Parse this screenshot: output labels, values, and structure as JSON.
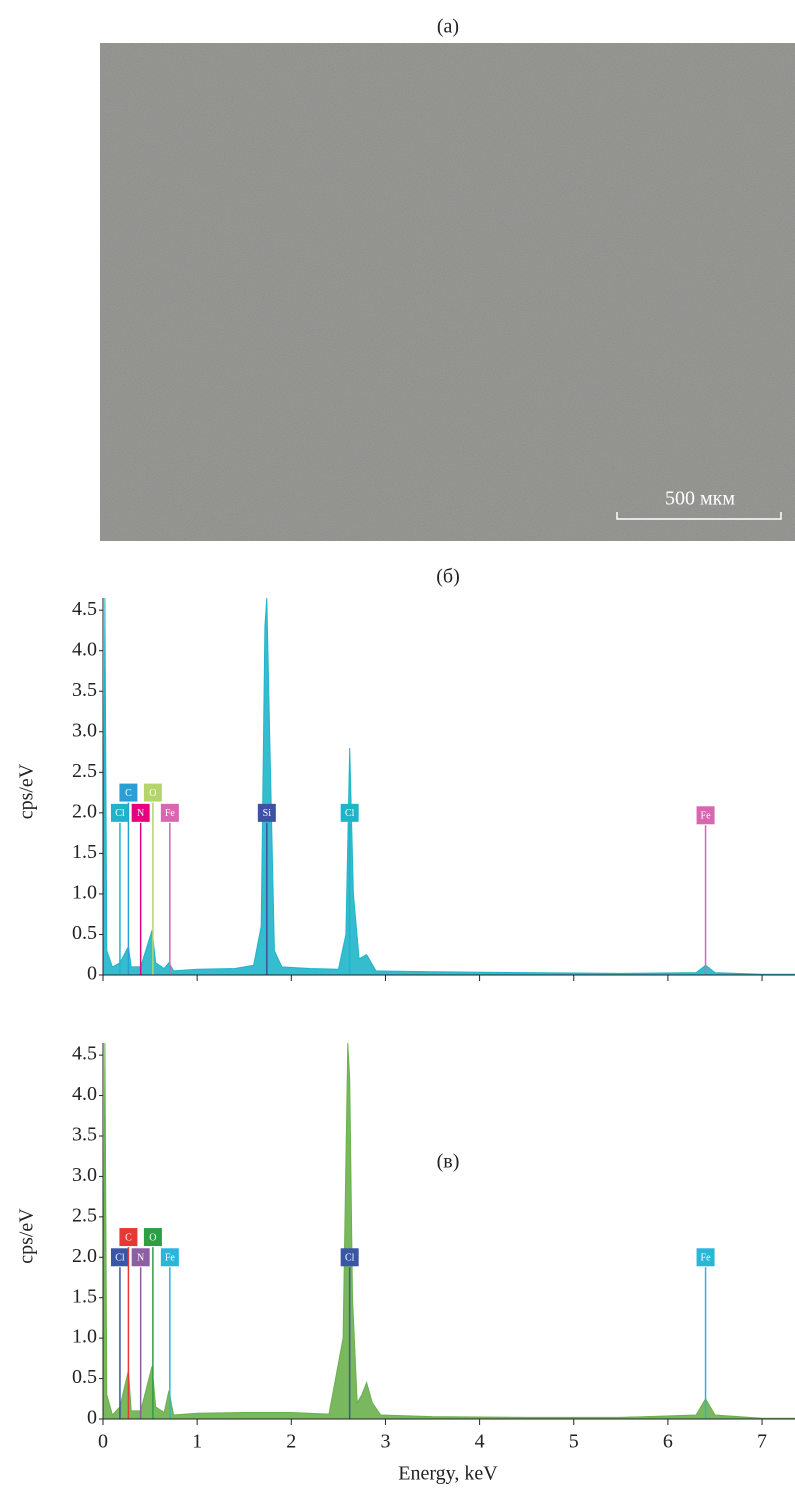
{
  "image": {
    "label": "(а)",
    "scale_bar": "500 мкм"
  },
  "chart_data": [
    {
      "type": "area",
      "title": "(б)",
      "ylabel": "cps/eV",
      "color": "#1fb5c9",
      "x": [
        0,
        0.02,
        0.04,
        0.1,
        0.18,
        0.27,
        0.3,
        0.4,
        0.52,
        0.56,
        0.65,
        0.7,
        0.75,
        1.0,
        1.4,
        1.6,
        1.68,
        1.72,
        1.74,
        1.77,
        1.82,
        1.9,
        2.2,
        2.5,
        2.58,
        2.62,
        2.66,
        2.72,
        2.8,
        2.9,
        3.5,
        4.5,
        5.5,
        6.3,
        6.4,
        6.5,
        7.0,
        7.35
      ],
      "values": [
        0,
        4.65,
        0.3,
        0.1,
        0.15,
        0.35,
        0.1,
        0.1,
        0.55,
        0.15,
        0.08,
        0.15,
        0.05,
        0.07,
        0.08,
        0.12,
        0.6,
        4.3,
        4.65,
        3.0,
        0.3,
        0.1,
        0.08,
        0.07,
        0.5,
        2.8,
        1.0,
        0.2,
        0.25,
        0.05,
        0.04,
        0.03,
        0.02,
        0.03,
        0.12,
        0.03,
        0.01,
        0.01
      ],
      "markers": [
        {
          "label": "Cl",
          "x": 0.18,
          "y": 2.0,
          "color": "#1fb5c9"
        },
        {
          "label": "C",
          "x": 0.27,
          "y": 2.25,
          "color": "#2a9fd6"
        },
        {
          "label": "N",
          "x": 0.4,
          "y": 2.0,
          "color": "#e6007e"
        },
        {
          "label": "O",
          "x": 0.53,
          "y": 2.25,
          "color": "#b5d56a"
        },
        {
          "label": "Fe",
          "x": 0.71,
          "y": 2.0,
          "color": "#d966b0"
        },
        {
          "label": "Si",
          "x": 1.74,
          "y": 2.0,
          "color": "#3f51a3"
        },
        {
          "label": "Cl",
          "x": 2.62,
          "y": 2.0,
          "color": "#1fb5c9"
        },
        {
          "label": "Fe",
          "x": 6.4,
          "y": 1.97,
          "color": "#d966b0"
        }
      ],
      "xlim": [
        0,
        7.35
      ],
      "xticks": [
        0,
        1,
        2,
        3,
        4,
        5,
        6,
        7
      ],
      "xtick_labels": false,
      "ylim": [
        0,
        4.65
      ],
      "yticks": [
        0,
        0.5,
        {
          "value": 1,
          "label": "1.0"
        },
        1.5,
        {
          "value": 2,
          "label": "2.0"
        },
        2.5,
        {
          "value": 3,
          "label": "3.0"
        },
        3.5,
        {
          "value": 4,
          "label": "4.0"
        },
        4.5
      ]
    },
    {
      "type": "area",
      "title": "(в)",
      "ylabel": "cps/eV",
      "xlabel": "Energy, keV",
      "color": "#6ab04c",
      "x": [
        0,
        0.02,
        0.04,
        0.1,
        0.18,
        0.27,
        0.3,
        0.4,
        0.52,
        0.56,
        0.65,
        0.7,
        0.75,
        1.0,
        1.5,
        2.0,
        2.4,
        2.55,
        2.6,
        2.62,
        2.65,
        2.7,
        2.75,
        2.8,
        2.86,
        2.95,
        3.5,
        4.5,
        5.5,
        6.3,
        6.4,
        6.5,
        7.0,
        7.35
      ],
      "values": [
        0,
        4.65,
        0.3,
        0.05,
        0.15,
        0.6,
        0.1,
        0.1,
        0.65,
        0.15,
        0.08,
        0.35,
        0.05,
        0.07,
        0.08,
        0.08,
        0.06,
        1.0,
        4.65,
        4.2,
        1.5,
        0.2,
        0.3,
        0.45,
        0.2,
        0.05,
        0.03,
        0.02,
        0.02,
        0.05,
        0.25,
        0.05,
        0.01,
        0.01
      ],
      "markers": [
        {
          "label": "Cl",
          "x": 0.18,
          "y": 2.0,
          "color": "#3a56a6"
        },
        {
          "label": "C",
          "x": 0.27,
          "y": 2.25,
          "color": "#e53935"
        },
        {
          "label": "N",
          "x": 0.4,
          "y": 2.0,
          "color": "#8e5ea2"
        },
        {
          "label": "O",
          "x": 0.53,
          "y": 2.25,
          "color": "#2e9e44"
        },
        {
          "label": "Fe",
          "x": 0.71,
          "y": 2.0,
          "color": "#29b6d8"
        },
        {
          "label": "Cl",
          "x": 2.62,
          "y": 2.0,
          "color": "#3a56a6"
        },
        {
          "label": "Fe",
          "x": 6.4,
          "y": 2.0,
          "color": "#29b6d8"
        }
      ],
      "xlim": [
        0,
        7.35
      ],
      "xticks": [
        0,
        1,
        2,
        3,
        4,
        5,
        6,
        7
      ],
      "xtick_labels": true,
      "ylim": [
        0,
        4.65
      ],
      "yticks": [
        0,
        0.5,
        {
          "value": 1,
          "label": "1.0"
        },
        1.5,
        {
          "value": 2,
          "label": "2.0"
        },
        2.5,
        {
          "value": 3,
          "label": "3.0"
        },
        3.5,
        {
          "value": 4,
          "label": "4.0"
        },
        4.5
      ]
    }
  ]
}
